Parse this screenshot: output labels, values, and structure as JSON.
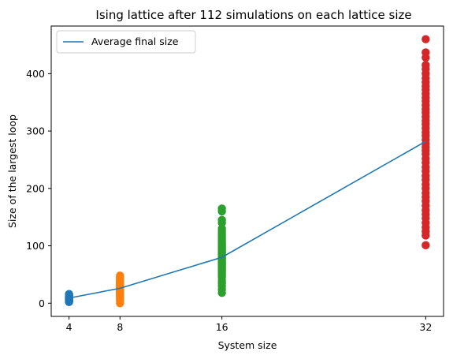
{
  "chart_data": {
    "type": "scatter",
    "title": "Ising lattice after 112 simulations on each lattice size",
    "xlabel": "System size",
    "ylabel": "Size of the largest loop",
    "xlim": [
      2.6,
      33.4
    ],
    "ylim": [
      -23,
      483
    ],
    "xticks": [
      4,
      8,
      16,
      32
    ],
    "yticks": [
      0,
      100,
      200,
      300,
      400
    ],
    "grid": false,
    "legend_position": "top-left",
    "series": [
      {
        "name": "Average final size",
        "kind": "line",
        "color": "#1f77b4",
        "x": [
          4,
          8,
          16,
          32
        ],
        "y": [
          9,
          26,
          80,
          282
        ]
      }
    ],
    "scatter_series": [
      {
        "x": 4,
        "color": "#1f77b4",
        "y": [
          2,
          3,
          4,
          4,
          5,
          5,
          6,
          6,
          6,
          7,
          7,
          8,
          8,
          8,
          9,
          9,
          9,
          10,
          10,
          10,
          11,
          11,
          12,
          12,
          13,
          14,
          15,
          16
        ]
      },
      {
        "x": 8,
        "color": "#ff7f0e",
        "y": [
          0,
          5,
          8,
          11,
          13,
          15,
          17,
          18,
          19,
          20,
          21,
          22,
          23,
          24,
          25,
          26,
          27,
          28,
          29,
          30,
          31,
          32,
          33,
          34,
          35,
          36,
          37,
          38,
          39,
          40,
          42,
          44,
          46,
          48
        ]
      },
      {
        "x": 16,
        "color": "#2ca02c",
        "y": [
          18,
          24,
          30,
          35,
          40,
          45,
          48,
          52,
          55,
          58,
          60,
          63,
          65,
          68,
          70,
          72,
          75,
          78,
          80,
          83,
          85,
          88,
          90,
          93,
          95,
          98,
          100,
          103,
          106,
          110,
          114,
          118,
          122,
          126,
          130,
          140,
          145,
          160,
          165
        ]
      },
      {
        "x": 32,
        "color": "#d62728",
        "y": [
          101,
          118,
          125,
          132,
          140,
          148,
          155,
          162,
          170,
          178,
          185,
          192,
          200,
          207,
          215,
          222,
          230,
          237,
          245,
          252,
          260,
          266,
          272,
          278,
          285,
          292,
          298,
          305,
          312,
          318,
          325,
          332,
          338,
          345,
          352,
          358,
          365,
          372,
          378,
          385,
          392,
          400,
          408,
          415,
          428,
          437,
          460
        ]
      }
    ]
  }
}
